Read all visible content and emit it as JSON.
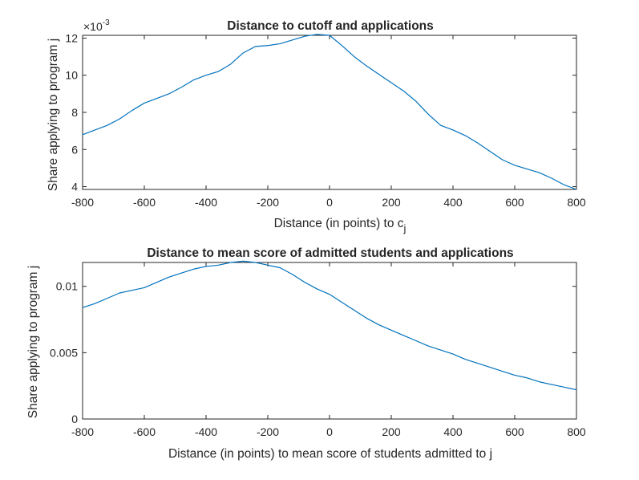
{
  "chart_data": [
    {
      "type": "line",
      "title": "Distance to cutoff and applications",
      "xlabel_main": "Distance (in points) to c",
      "xlabel_sub": "j",
      "ylabel": "Share applying to program j",
      "exponent_base": "×10",
      "exponent_power": "-3",
      "xlim": [
        -800,
        800
      ],
      "ylim": [
        3.85,
        12.15
      ],
      "xticks": [
        -800,
        -600,
        -400,
        -200,
        0,
        200,
        400,
        600,
        800
      ],
      "xtick_labels": [
        "-800",
        "-600",
        "-400",
        "-200",
        "0",
        "200",
        "400",
        "600",
        "800"
      ],
      "yticks": [
        4,
        6,
        8,
        10,
        12
      ],
      "ytick_labels": [
        "4",
        "6",
        "8",
        "10",
        "12"
      ],
      "grid": false,
      "line_color": "#0072BD",
      "x": [
        -800,
        -760,
        -720,
        -680,
        -640,
        -600,
        -560,
        -520,
        -480,
        -440,
        -400,
        -360,
        -320,
        -280,
        -240,
        -200,
        -160,
        -120,
        -80,
        -40,
        0,
        40,
        80,
        120,
        160,
        200,
        240,
        280,
        320,
        360,
        400,
        440,
        480,
        520,
        560,
        600,
        640,
        680,
        720,
        760,
        800
      ],
      "values": [
        6.8,
        7.05,
        7.3,
        7.65,
        8.1,
        8.5,
        8.75,
        9.0,
        9.35,
        9.75,
        10.0,
        10.2,
        10.6,
        11.2,
        11.55,
        11.6,
        11.7,
        11.9,
        12.1,
        12.2,
        12.15,
        11.6,
        11.0,
        10.5,
        10.05,
        9.6,
        9.15,
        8.6,
        7.9,
        7.3,
        7.05,
        6.75,
        6.35,
        5.9,
        5.45,
        5.15,
        4.95,
        4.75,
        4.45,
        4.1,
        3.85
      ]
    },
    {
      "type": "line",
      "title": "Distance to mean score of admitted students and applications",
      "xlabel": "Distance (in points) to mean score of students admitted to j",
      "ylabel": "Share applying to program j",
      "xlim": [
        -800,
        800
      ],
      "ylim": [
        0,
        0.0118
      ],
      "xticks": [
        -800,
        -600,
        -400,
        -200,
        0,
        200,
        400,
        600,
        800
      ],
      "xtick_labels": [
        "-800",
        "-600",
        "-400",
        "-200",
        "0",
        "200",
        "400",
        "600",
        "800"
      ],
      "yticks": [
        0,
        0.005,
        0.01
      ],
      "ytick_labels": [
        "0",
        "0.005",
        "0.01"
      ],
      "grid": false,
      "line_color": "#0072BD",
      "x": [
        -800,
        -760,
        -720,
        -680,
        -640,
        -600,
        -560,
        -520,
        -480,
        -440,
        -400,
        -360,
        -320,
        -280,
        -240,
        -200,
        -160,
        -120,
        -80,
        -40,
        0,
        40,
        80,
        120,
        160,
        200,
        240,
        280,
        320,
        360,
        400,
        440,
        480,
        520,
        560,
        600,
        640,
        680,
        720,
        760,
        800
      ],
      "values": [
        0.0084,
        0.0087,
        0.0091,
        0.0095,
        0.0097,
        0.0099,
        0.0103,
        0.0107,
        0.011,
        0.0113,
        0.0115,
        0.0116,
        0.0118,
        0.0119,
        0.0118,
        0.0116,
        0.0114,
        0.0109,
        0.0103,
        0.0098,
        0.0094,
        0.0088,
        0.0082,
        0.0076,
        0.0071,
        0.0067,
        0.0063,
        0.0059,
        0.0055,
        0.0052,
        0.0049,
        0.0045,
        0.0042,
        0.0039,
        0.0036,
        0.0033,
        0.0031,
        0.0028,
        0.0026,
        0.0024,
        0.0022
      ]
    }
  ]
}
